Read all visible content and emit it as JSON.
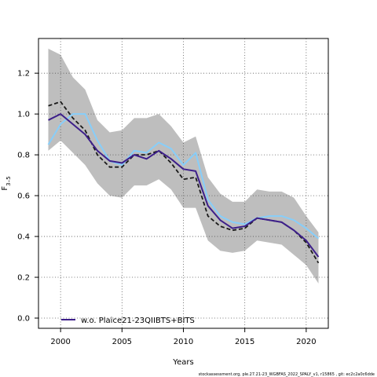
{
  "chart_data": {
    "type": "line",
    "title": "",
    "xlabel": "Years",
    "ylabel": "F",
    "ylabel_sub": "3–5",
    "xlim": [
      1998.2,
      2021.8
    ],
    "ylim": [
      -0.05,
      1.37
    ],
    "xticks": [
      2000,
      2005,
      2010,
      2015,
      2020
    ],
    "yticks": [
      0.0,
      0.2,
      0.4,
      0.6,
      0.8,
      1.0,
      1.2
    ],
    "grid": true,
    "legend_position": "bottom-left",
    "band": {
      "x": [
        1999,
        2000,
        2001,
        2002,
        2003,
        2004,
        2005,
        2006,
        2007,
        2008,
        2009,
        2010,
        2011,
        2012,
        2013,
        2014,
        2015,
        2016,
        2017,
        2018,
        2019,
        2020,
        2021
      ],
      "upper": [
        1.32,
        1.29,
        1.18,
        1.12,
        0.97,
        0.91,
        0.92,
        0.98,
        0.98,
        1.0,
        0.94,
        0.86,
        0.89,
        0.69,
        0.61,
        0.57,
        0.57,
        0.63,
        0.62,
        0.62,
        0.59,
        0.5,
        0.42
      ],
      "lower": [
        0.82,
        0.87,
        0.81,
        0.75,
        0.66,
        0.6,
        0.59,
        0.65,
        0.65,
        0.68,
        0.63,
        0.54,
        0.54,
        0.38,
        0.33,
        0.32,
        0.33,
        0.38,
        0.37,
        0.36,
        0.31,
        0.26,
        0.17
      ],
      "color": "#bebebe"
    },
    "series": [
      {
        "name": "",
        "style": "dashed",
        "color": "#1a1a1a",
        "x": [
          1999,
          2000,
          2001,
          2002,
          2003,
          2004,
          2005,
          2006,
          2007,
          2008,
          2009,
          2010,
          2011,
          2012,
          2013,
          2014,
          2015,
          2016,
          2017,
          2018,
          2019,
          2020,
          2021
        ],
        "values": [
          1.04,
          1.06,
          0.98,
          0.92,
          0.8,
          0.74,
          0.74,
          0.8,
          0.8,
          0.82,
          0.76,
          0.68,
          0.69,
          0.5,
          0.45,
          0.43,
          0.44,
          0.49,
          0.48,
          0.47,
          0.43,
          0.37,
          0.27
        ]
      },
      {
        "name": "",
        "style": "solid",
        "color": "#87cefa",
        "x": [
          1999,
          2000,
          2001,
          2002,
          2003,
          2004,
          2005,
          2006,
          2007,
          2008,
          2009,
          2010,
          2011,
          2012,
          2013,
          2014,
          2015,
          2016,
          2017,
          2018,
          2019,
          2020,
          2021
        ],
        "values": [
          0.85,
          0.95,
          1.0,
          1.0,
          0.87,
          0.77,
          0.75,
          0.82,
          0.81,
          0.86,
          0.83,
          0.75,
          0.81,
          0.58,
          0.5,
          0.47,
          0.46,
          0.49,
          0.5,
          0.5,
          0.48,
          0.44,
          0.39
        ]
      },
      {
        "name": "w.o. Plaice21-23QIIBTS+BITS",
        "style": "solid",
        "color": "#3d1f8a",
        "x": [
          1999,
          2000,
          2001,
          2002,
          2003,
          2004,
          2005,
          2006,
          2007,
          2008,
          2009,
          2010,
          2011,
          2012,
          2013,
          2014,
          2015,
          2016,
          2017,
          2018,
          2019,
          2020,
          2021
        ],
        "values": [
          0.97,
          1.0,
          0.95,
          0.9,
          0.82,
          0.77,
          0.76,
          0.8,
          0.78,
          0.82,
          0.78,
          0.73,
          0.72,
          0.55,
          0.48,
          0.44,
          0.45,
          0.49,
          0.48,
          0.47,
          0.43,
          0.38,
          0.3
        ]
      }
    ],
    "legend_label": "w.o. Plaice21-23QIIBTS+BITS"
  },
  "footer_text": "stockassessment.org,  ple.27.21-23_WGBFAS_2022_SPALY_v1,  r15865 ,  git: ec2c2a0c6dde"
}
